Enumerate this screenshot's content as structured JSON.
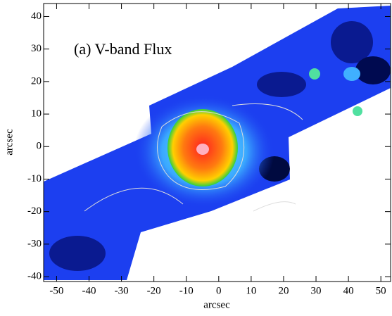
{
  "chart_data": {
    "type": "image",
    "title": "(a) V-band Flux",
    "xlabel": "arcsec",
    "ylabel": "arcsec",
    "xlim": [
      -54,
      53
    ],
    "ylim": [
      -41.5,
      44
    ],
    "xticks": [
      -50,
      -40,
      -30,
      -20,
      -10,
      0,
      10,
      20,
      30,
      40,
      50
    ],
    "yticks": [
      -40,
      -30,
      -20,
      -10,
      0,
      10,
      20,
      30,
      40
    ]
  }
}
